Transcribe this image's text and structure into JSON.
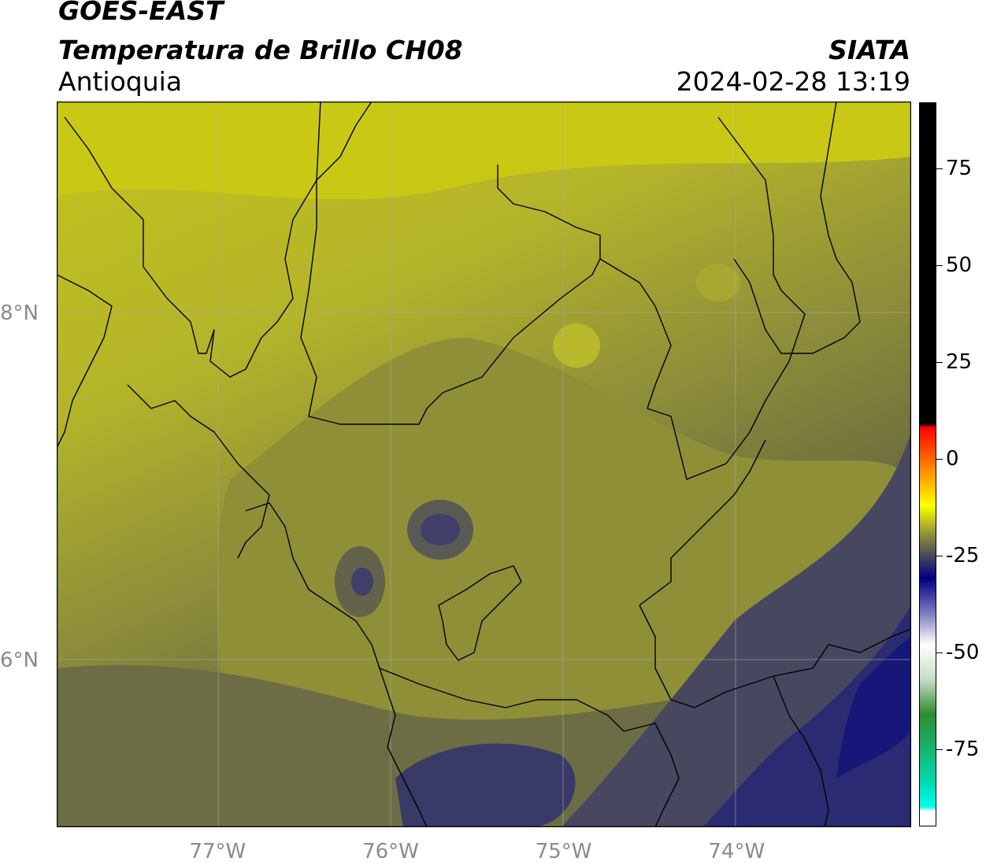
{
  "header": {
    "satellite": "GOES-EAST",
    "product": "Temperatura de Brillo CH08",
    "region": "Antioquia",
    "organization": "SIATA",
    "timestamp": "2024-02-28 13:19"
  },
  "map": {
    "lon_range": [
      -77.94,
      -73.0
    ],
    "lat_range": [
      5.04,
      9.22
    ],
    "longitude_labels": [
      {
        "lon": -77,
        "text": "77°W"
      },
      {
        "lon": -76,
        "text": "76°W"
      },
      {
        "lon": -75,
        "text": "75°W"
      },
      {
        "lon": -74,
        "text": "74°W"
      }
    ],
    "latitude_labels": [
      {
        "lat": 8,
        "text": "8°N"
      },
      {
        "lat": 6,
        "text": "6°N"
      }
    ],
    "gridlines": true
  },
  "colorbar": {
    "range": [
      -95,
      92
    ],
    "ticks": [
      {
        "value": 75,
        "text": "75"
      },
      {
        "value": 50,
        "text": "50"
      },
      {
        "value": 25,
        "text": "25"
      },
      {
        "value": 0,
        "text": "0"
      },
      {
        "value": -25,
        "text": "-25"
      },
      {
        "value": -50,
        "text": "-50"
      },
      {
        "value": -75,
        "text": "-75"
      }
    ],
    "stops": [
      {
        "value": 92,
        "color": "#000000"
      },
      {
        "value": 9,
        "color": "#000000"
      },
      {
        "value": 8,
        "color": "#ff0000"
      },
      {
        "value": -3,
        "color": "#ff8c00"
      },
      {
        "value": -12,
        "color": "#ffff00"
      },
      {
        "value": -20,
        "color": "#8a8a3a"
      },
      {
        "value": -26,
        "color": "#3d3d63"
      },
      {
        "value": -31,
        "color": "#000080"
      },
      {
        "value": -41,
        "color": "#8c8cc8"
      },
      {
        "value": -48,
        "color": "#ffffff"
      },
      {
        "value": -57,
        "color": "#c8dcc8"
      },
      {
        "value": -66,
        "color": "#2e8b2e"
      },
      {
        "value": -84,
        "color": "#00dcb4"
      },
      {
        "value": -90,
        "color": "#00ffee"
      },
      {
        "value": -91,
        "color": "#ffffff"
      },
      {
        "value": -95,
        "color": "#ffffff"
      }
    ]
  }
}
